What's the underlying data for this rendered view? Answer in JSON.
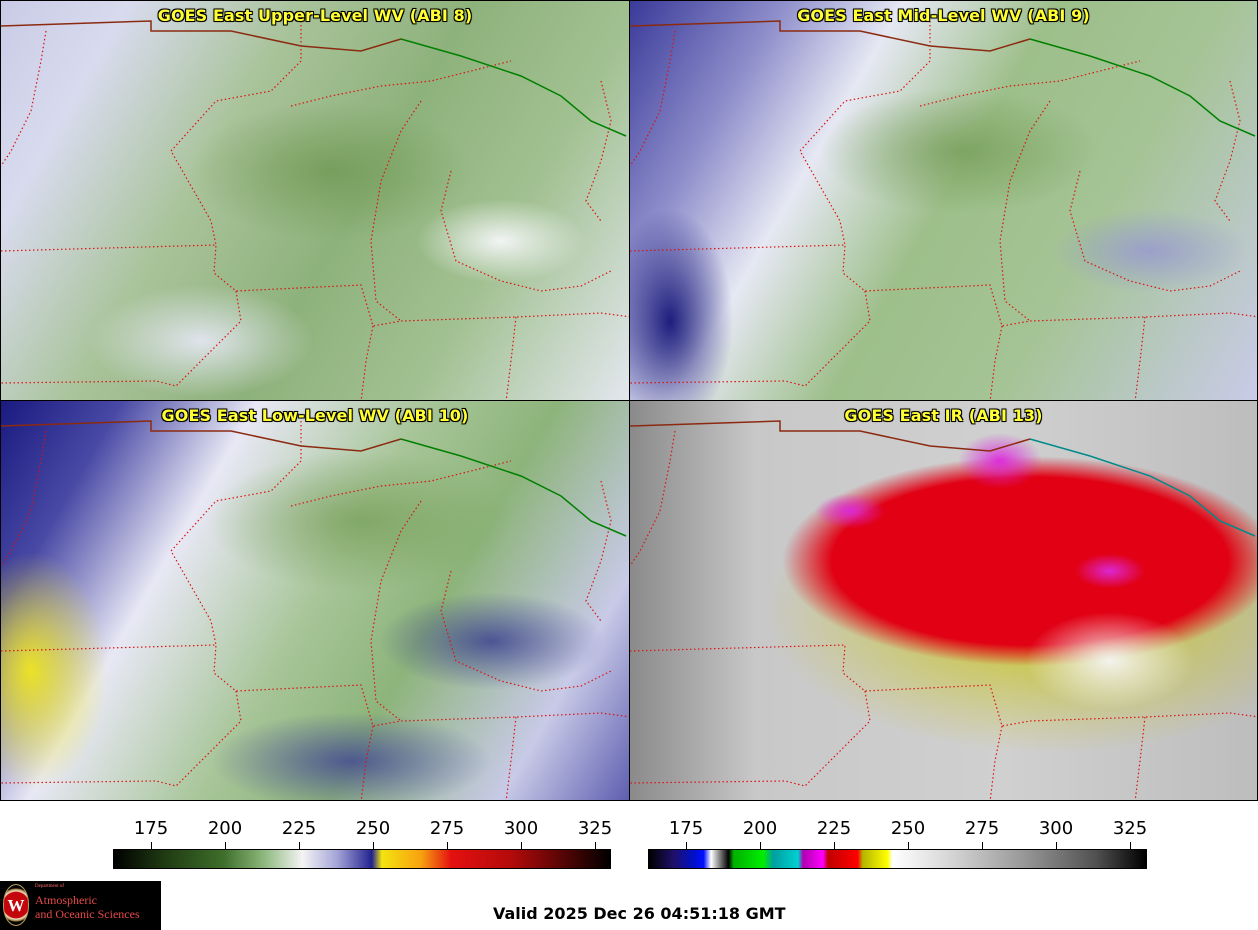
{
  "panels": [
    {
      "title": "GOES East Upper-Level WV (ABI 8)"
    },
    {
      "title": "GOES East Mid-Level WV (ABI 9)"
    },
    {
      "title": "GOES East Low-Level WV (ABI 10)"
    },
    {
      "title": "GOES East IR (ABI 13)"
    }
  ],
  "colorbar_left": {
    "ticks": [
      "175",
      "200",
      "225",
      "250",
      "275",
      "300",
      "325"
    ]
  },
  "colorbar_right": {
    "ticks": [
      "175",
      "200",
      "225",
      "250",
      "275",
      "300",
      "325"
    ]
  },
  "logo": {
    "department": "Department of",
    "line1": "Atmospheric",
    "line2": "and Oceanic Sciences",
    "seal_letter": "W"
  },
  "valid_time": "Valid 2025 Dec 26 04:51:18 GMT",
  "colors": {
    "title_text": "#ffff33",
    "state_border": "#dd1111",
    "country_border": "#8b2a10",
    "us_canada_border": "#008000"
  }
}
